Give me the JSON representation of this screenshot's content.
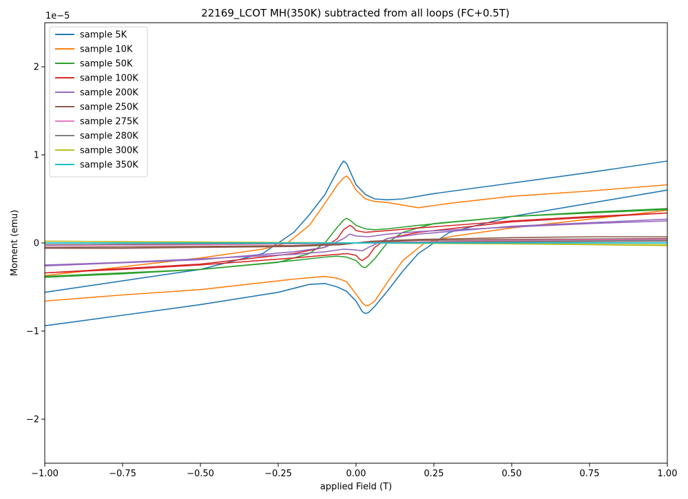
{
  "chart_data": {
    "type": "line",
    "title": "22169_LCOT MH(350K) subtracted from all loops (FC+0.5T)",
    "xlabel": "applied Field (T)",
    "ylabel": "Moment (emu)",
    "y_offset_label": "1e−5",
    "xlim": [
      -1.0,
      1.0
    ],
    "ylim": [
      -2.5,
      2.5
    ],
    "y_scale_note": "values in units of 1e-5 emu",
    "x_ticks": [
      -1.0,
      -0.75,
      -0.5,
      -0.25,
      0.0,
      0.25,
      0.5,
      0.75,
      1.0
    ],
    "x_tick_labels": [
      "−1.00",
      "−0.75",
      "−0.50",
      "−0.25",
      "0.00",
      "0.25",
      "0.50",
      "0.75",
      "1.00"
    ],
    "y_ticks": [
      -2,
      -1,
      0,
      1,
      2
    ],
    "y_tick_labels": [
      "−2",
      "−1",
      "0",
      "1",
      "2"
    ],
    "grid": false,
    "legend_position": "top-left",
    "series": [
      {
        "name": "sample 5K",
        "color": "#1f77b4",
        "branches": [
          {
            "x": [
              -1.0,
              -0.5,
              -0.3,
              -0.25,
              -0.2,
              -0.15,
              -0.1,
              -0.07,
              -0.05,
              -0.04,
              -0.03,
              -0.02,
              0.0,
              0.03,
              0.06,
              0.1,
              0.15,
              0.25,
              0.5,
              0.75,
              1.0
            ],
            "y": [
              -0.56,
              -0.3,
              -0.12,
              0.0,
              0.12,
              0.32,
              0.55,
              0.75,
              0.88,
              0.93,
              0.9,
              0.82,
              0.66,
              0.55,
              0.5,
              0.49,
              0.5,
              0.56,
              0.68,
              0.8,
              0.93
            ]
          },
          {
            "x": [
              1.0,
              0.5,
              0.3,
              0.25,
              0.2,
              0.15,
              0.1,
              0.06,
              0.04,
              0.03,
              0.02,
              0.0,
              -0.03,
              -0.06,
              -0.1,
              -0.15,
              -0.25,
              -0.5,
              -0.75,
              -1.0
            ],
            "y": [
              0.6,
              0.3,
              0.12,
              0.0,
              -0.12,
              -0.32,
              -0.55,
              -0.72,
              -0.79,
              -0.8,
              -0.78,
              -0.66,
              -0.55,
              -0.5,
              -0.46,
              -0.47,
              -0.56,
              -0.7,
              -0.82,
              -0.94
            ]
          }
        ]
      },
      {
        "name": "sample 10K",
        "color": "#ff7f0e",
        "branches": [
          {
            "x": [
              -1.0,
              -0.5,
              -0.3,
              -0.22,
              -0.15,
              -0.1,
              -0.06,
              -0.04,
              -0.03,
              -0.02,
              0.0,
              0.03,
              0.06,
              0.1,
              0.2,
              0.3,
              0.5,
              0.75,
              1.0
            ],
            "y": [
              -0.37,
              -0.17,
              -0.07,
              0.0,
              0.2,
              0.45,
              0.66,
              0.74,
              0.76,
              0.72,
              0.6,
              0.5,
              0.47,
              0.46,
              0.4,
              0.45,
              0.53,
              0.59,
              0.66
            ]
          },
          {
            "x": [
              1.0,
              0.5,
              0.3,
              0.22,
              0.15,
              0.1,
              0.06,
              0.04,
              0.03,
              0.02,
              0.0,
              -0.03,
              -0.06,
              -0.1,
              -0.2,
              -0.3,
              -0.5,
              -0.75,
              -1.0
            ],
            "y": [
              0.37,
              0.17,
              0.07,
              0.0,
              -0.2,
              -0.45,
              -0.66,
              -0.71,
              -0.71,
              -0.68,
              -0.58,
              -0.44,
              -0.4,
              -0.38,
              -0.41,
              -0.45,
              -0.53,
              -0.59,
              -0.66
            ]
          }
        ]
      },
      {
        "name": "sample 50K",
        "color": "#2ca02c",
        "branches": [
          {
            "x": [
              -1.0,
              -0.5,
              -0.25,
              -0.15,
              -0.1,
              -0.06,
              -0.04,
              -0.03,
              -0.02,
              0.0,
              0.03,
              0.06,
              0.1,
              0.2,
              0.5,
              0.75,
              1.0
            ],
            "y": [
              -0.38,
              -0.3,
              -0.22,
              -0.12,
              0.0,
              0.18,
              0.26,
              0.28,
              0.26,
              0.2,
              0.16,
              0.15,
              0.16,
              0.2,
              0.3,
              0.35,
              0.39
            ]
          },
          {
            "x": [
              1.0,
              0.5,
              0.25,
              0.15,
              0.1,
              0.06,
              0.04,
              0.03,
              0.02,
              0.0,
              -0.03,
              -0.06,
              -0.1,
              -0.2,
              -0.5,
              -0.75,
              -1.0
            ],
            "y": [
              0.38,
              0.3,
              0.22,
              0.12,
              0.0,
              -0.18,
              -0.25,
              -0.28,
              -0.27,
              -0.2,
              -0.16,
              -0.15,
              -0.16,
              -0.2,
              -0.3,
              -0.35,
              -0.39
            ]
          }
        ]
      },
      {
        "name": "sample 100K",
        "color": "#d62728",
        "branches": [
          {
            "x": [
              -1.0,
              -0.5,
              -0.2,
              -0.1,
              -0.06,
              -0.04,
              -0.02,
              -0.01,
              0.0,
              0.03,
              0.06,
              0.1,
              0.2,
              0.5,
              0.75,
              1.0
            ],
            "y": [
              -0.34,
              -0.24,
              -0.12,
              -0.05,
              0.05,
              0.15,
              0.2,
              0.18,
              0.14,
              0.12,
              0.13,
              0.14,
              0.17,
              0.25,
              0.3,
              0.34
            ]
          },
          {
            "x": [
              1.0,
              0.5,
              0.2,
              0.1,
              0.06,
              0.04,
              0.02,
              0.01,
              0.0,
              -0.03,
              -0.06,
              -0.1,
              -0.2,
              -0.5,
              -0.75,
              -1.0
            ],
            "y": [
              0.34,
              0.24,
              0.12,
              0.05,
              -0.05,
              -0.15,
              -0.2,
              -0.18,
              -0.14,
              -0.12,
              -0.13,
              -0.14,
              -0.17,
              -0.25,
              -0.3,
              -0.34
            ]
          }
        ]
      },
      {
        "name": "sample 200K",
        "color": "#9467bd",
        "branches": [
          {
            "x": [
              -1.0,
              -0.5,
              -0.2,
              -0.1,
              -0.04,
              -0.02,
              0.0,
              0.04,
              0.1,
              0.2,
              0.5,
              0.75,
              1.0
            ],
            "y": [
              -0.26,
              -0.19,
              -0.1,
              -0.05,
              0.05,
              0.1,
              0.08,
              0.07,
              0.1,
              0.13,
              0.18,
              0.22,
              0.25
            ]
          },
          {
            "x": [
              1.0,
              0.5,
              0.2,
              0.1,
              0.04,
              0.02,
              0.0,
              -0.04,
              -0.1,
              -0.2,
              -0.5,
              -0.75,
              -1.0
            ],
            "y": [
              0.27,
              0.19,
              0.1,
              0.05,
              -0.05,
              -0.09,
              -0.08,
              -0.07,
              -0.1,
              -0.13,
              -0.18,
              -0.22,
              -0.25
            ]
          }
        ]
      },
      {
        "name": "sample 250K",
        "color": "#8c564b",
        "branches": [
          {
            "x": [
              -1.0,
              -0.5,
              -0.2,
              -0.05,
              0.0,
              0.05,
              0.2,
              0.5,
              0.75,
              1.0
            ],
            "y": [
              -0.05,
              -0.04,
              -0.03,
              -0.01,
              0.0,
              0.02,
              0.04,
              0.06,
              0.07,
              0.07
            ]
          },
          {
            "x": [
              1.0,
              0.5,
              0.2,
              0.05,
              0.0,
              -0.05,
              -0.2,
              -0.5,
              -0.75,
              -1.0
            ],
            "y": [
              0.05,
              0.04,
              0.03,
              0.01,
              0.0,
              -0.02,
              -0.04,
              -0.05,
              -0.06,
              -0.06
            ]
          }
        ]
      },
      {
        "name": "sample 275K",
        "color": "#e377c2",
        "branches": [
          {
            "x": [
              -1.0,
              -0.5,
              0.0,
              0.5,
              1.0
            ],
            "y": [
              -0.03,
              -0.02,
              0.0,
              0.03,
              0.04
            ]
          },
          {
            "x": [
              1.0,
              0.5,
              0.0,
              -0.5,
              -1.0
            ],
            "y": [
              0.03,
              0.02,
              0.0,
              -0.02,
              -0.03
            ]
          }
        ]
      },
      {
        "name": "sample 280K",
        "color": "#7f7f7f",
        "branches": [
          {
            "x": [
              -1.0,
              -0.5,
              0.0,
              0.5,
              1.0
            ],
            "y": [
              -0.02,
              -0.01,
              0.0,
              0.02,
              0.03
            ]
          },
          {
            "x": [
              1.0,
              0.5,
              0.0,
              -0.5,
              -1.0
            ],
            "y": [
              0.02,
              0.01,
              0.0,
              -0.01,
              -0.02
            ]
          }
        ]
      },
      {
        "name": "sample 300K",
        "color": "#bcbd22",
        "branches": [
          {
            "x": [
              -1.0,
              -0.5,
              0.0,
              0.5,
              1.0
            ],
            "y": [
              0.02,
              0.01,
              0.0,
              -0.01,
              -0.03
            ]
          },
          {
            "x": [
              1.0,
              0.5,
              0.0,
              -0.5,
              -1.0
            ],
            "y": [
              -0.02,
              -0.01,
              0.0,
              0.01,
              0.02
            ]
          }
        ]
      },
      {
        "name": "sample 350K",
        "color": "#17becf",
        "branches": [
          {
            "x": [
              -1.0,
              -0.5,
              0.0,
              0.5,
              1.0
            ],
            "y": [
              0.0,
              0.0,
              0.0,
              0.0,
              0.0
            ]
          },
          {
            "x": [
              1.0,
              0.5,
              0.0,
              -0.5,
              -1.0
            ],
            "y": [
              0.0,
              0.0,
              0.0,
              0.0,
              0.0
            ]
          }
        ]
      }
    ]
  }
}
